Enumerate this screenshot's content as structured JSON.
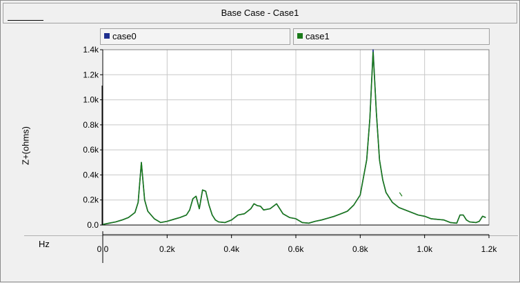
{
  "window": {
    "title": "Base Case - Case1"
  },
  "colors": {
    "case0": "#1f2f8f",
    "case1": "#1a7a1a",
    "grid": "#c8c8c8",
    "plot_bg": "#ffffff"
  },
  "chart_data": {
    "type": "line",
    "title": "Base Case - Case1",
    "xlabel": "Hz",
    "ylabel": "Z+(ohms)",
    "xlim": [
      0,
      1200
    ],
    "ylim": [
      0,
      1400
    ],
    "x_ticks": [
      0,
      200,
      400,
      600,
      800,
      1000,
      1200
    ],
    "x_tick_labels": [
      "0.0",
      "0.2k",
      "0.4k",
      "0.6k",
      "0.8k",
      "1.0k",
      "1.2k"
    ],
    "y_ticks": [
      0,
      200,
      400,
      600,
      800,
      1000,
      1200,
      1400
    ],
    "y_tick_labels": [
      "0.0",
      "0.2k",
      "0.4k",
      "0.6k",
      "0.8k",
      "1.0k",
      "1.2k",
      "1.4k"
    ],
    "grid": true,
    "legend_position": "top",
    "series": [
      {
        "name": "case0",
        "color": "#1f2f8f",
        "x": [
          0,
          20,
          40,
          60,
          80,
          100,
          110,
          120,
          130,
          140,
          160,
          180,
          200,
          220,
          240,
          260,
          270,
          280,
          290,
          300,
          310,
          320,
          330,
          340,
          350,
          360,
          380,
          400,
          420,
          440,
          460,
          470,
          480,
          490,
          500,
          520,
          540,
          550,
          560,
          580,
          600,
          620,
          640,
          660,
          680,
          700,
          720,
          740,
          760,
          780,
          800,
          820,
          830,
          840,
          850,
          860,
          870,
          880,
          900,
          920,
          940,
          960,
          980,
          1000,
          1020,
          1040,
          1060,
          1080,
          1100,
          1110,
          1120,
          1130,
          1140,
          1160,
          1170,
          1180,
          1190
        ],
        "values": [
          5,
          15,
          25,
          40,
          60,
          100,
          180,
          500,
          200,
          110,
          50,
          20,
          30,
          45,
          60,
          80,
          120,
          210,
          230,
          130,
          280,
          270,
          160,
          80,
          40,
          25,
          20,
          40,
          80,
          90,
          130,
          170,
          155,
          150,
          120,
          130,
          170,
          130,
          90,
          60,
          50,
          20,
          15,
          30,
          40,
          55,
          70,
          90,
          110,
          160,
          240,
          520,
          850,
          1400,
          900,
          520,
          360,
          260,
          180,
          140,
          120,
          100,
          80,
          70,
          50,
          45,
          40,
          20,
          15,
          80,
          80,
          40,
          25,
          20,
          30,
          70,
          60
        ]
      },
      {
        "name": "case1",
        "color": "#1a7a1a",
        "x": [
          0,
          20,
          40,
          60,
          80,
          100,
          110,
          120,
          130,
          140,
          160,
          180,
          200,
          220,
          240,
          260,
          270,
          280,
          290,
          300,
          310,
          320,
          330,
          340,
          350,
          360,
          380,
          400,
          420,
          440,
          460,
          470,
          480,
          490,
          500,
          520,
          540,
          550,
          560,
          580,
          600,
          620,
          640,
          660,
          680,
          700,
          720,
          740,
          760,
          780,
          800,
          820,
          830,
          840,
          850,
          860,
          870,
          880,
          900,
          920,
          940,
          960,
          980,
          1000,
          1020,
          1040,
          1060,
          1080,
          1100,
          1110,
          1120,
          1130,
          1140,
          1160,
          1170,
          1180,
          1190
        ],
        "values": [
          5,
          15,
          25,
          40,
          60,
          100,
          180,
          500,
          200,
          110,
          50,
          20,
          30,
          45,
          60,
          80,
          120,
          210,
          230,
          130,
          280,
          270,
          160,
          80,
          40,
          25,
          20,
          40,
          80,
          90,
          130,
          170,
          155,
          150,
          120,
          130,
          170,
          130,
          90,
          60,
          50,
          20,
          15,
          30,
          40,
          55,
          70,
          90,
          110,
          160,
          240,
          520,
          850,
          1380,
          900,
          520,
          360,
          260,
          180,
          140,
          120,
          100,
          80,
          70,
          50,
          45,
          40,
          20,
          15,
          80,
          80,
          40,
          25,
          20,
          30,
          70,
          60
        ]
      }
    ]
  }
}
